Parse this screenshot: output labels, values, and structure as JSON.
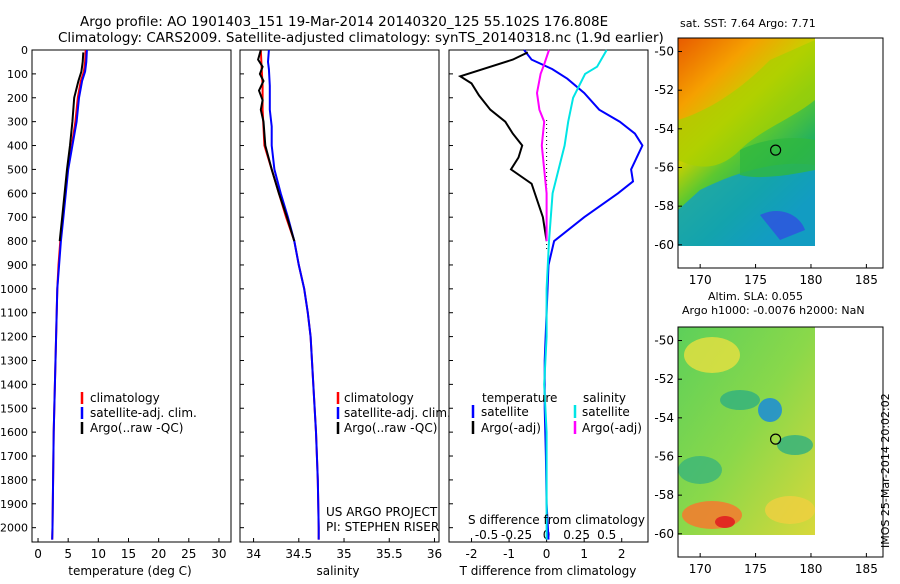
{
  "header": {
    "title_line1": "Argo profile: AO 1901403_151 19-Mar-2014 20140320_125 55.102S 176.808E",
    "title_line2": "Climatology: CARS2009. Satellite-adjusted climatology: synTS_20140318.nc (1.9d earlier)"
  },
  "side_stamp": "IMOS 25-Mar-2014 20:02:02",
  "colors": {
    "climatology": "#ff0000",
    "satellite": "#0000ff",
    "argo": "#000000",
    "salinity_sat": "#00e5e5",
    "salinity_argo": "#ff00ff"
  },
  "chart_data": [
    {
      "id": "temperature",
      "type": "line",
      "xlabel": "temperature (deg C)",
      "ylabel": "",
      "xlim": [
        -1,
        32
      ],
      "ylim": [
        2060,
        0
      ],
      "xticks": [
        0,
        5,
        10,
        15,
        20,
        25,
        30
      ],
      "yticks": [
        0,
        100,
        200,
        300,
        400,
        500,
        600,
        700,
        800,
        900,
        1000,
        1100,
        1200,
        1300,
        1400,
        1500,
        1600,
        1700,
        1800,
        1900,
        2000
      ],
      "legend": [
        "climatology",
        "satellite-adj. clim.",
        "Argo(..raw -QC)"
      ],
      "series": [
        {
          "name": "climatology",
          "color": "#ff0000",
          "points": [
            [
              7.9,
              0
            ],
            [
              7.8,
              50
            ],
            [
              7.6,
              90
            ],
            [
              7.1,
              130
            ],
            [
              6.6,
              200
            ],
            [
              6.2,
              300
            ],
            [
              5.6,
              400
            ],
            [
              4.9,
              500
            ],
            [
              4.5,
              600
            ],
            [
              4.1,
              700
            ],
            [
              3.7,
              800
            ],
            [
              3.4,
              900
            ],
            [
              3.2,
              1000
            ],
            [
              3.0,
              1200
            ],
            [
              2.8,
              1400
            ],
            [
              2.6,
              1600
            ],
            [
              2.5,
              1800
            ],
            [
              2.4,
              2000
            ],
            [
              2.35,
              2050
            ]
          ]
        },
        {
          "name": "satellite-adj. clim.",
          "color": "#0000ff",
          "points": [
            [
              8.1,
              0
            ],
            [
              8.0,
              50
            ],
            [
              7.8,
              90
            ],
            [
              7.3,
              130
            ],
            [
              6.8,
              200
            ],
            [
              6.4,
              300
            ],
            [
              5.7,
              400
            ],
            [
              5.0,
              500
            ],
            [
              4.6,
              600
            ],
            [
              4.2,
              700
            ],
            [
              3.8,
              800
            ],
            [
              3.5,
              900
            ],
            [
              3.2,
              1000
            ],
            [
              3.0,
              1200
            ],
            [
              2.8,
              1400
            ],
            [
              2.6,
              1600
            ],
            [
              2.5,
              1800
            ],
            [
              2.4,
              2000
            ],
            [
              2.35,
              2050
            ]
          ]
        },
        {
          "name": "Argo(..raw -QC)",
          "color": "#000000",
          "points": [
            [
              7.5,
              10
            ],
            [
              7.4,
              50
            ],
            [
              7.2,
              90
            ],
            [
              6.7,
              130
            ],
            [
              6.0,
              200
            ],
            [
              5.7,
              300
            ],
            [
              5.3,
              400
            ],
            [
              4.8,
              500
            ],
            [
              4.4,
              600
            ],
            [
              4.0,
              700
            ],
            [
              3.6,
              800
            ]
          ]
        }
      ]
    },
    {
      "id": "salinity",
      "type": "line",
      "xlabel": "salinity",
      "ylabel": "",
      "xlim": [
        33.85,
        36.05
      ],
      "ylim": [
        2060,
        0
      ],
      "xticks": [
        34,
        34.5,
        35,
        35.5,
        36
      ],
      "annotations": [
        "US ARGO PROJECT",
        "PI: STEPHEN RISER"
      ],
      "legend": [
        "climatology",
        "satellite-adj. clim.",
        "Argo(..raw -QC)"
      ],
      "series": [
        {
          "name": "climatology",
          "color": "#ff0000",
          "points": [
            [
              34.08,
              0
            ],
            [
              34.09,
              80
            ],
            [
              34.1,
              150
            ],
            [
              34.1,
              250
            ],
            [
              34.12,
              400
            ],
            [
              34.2,
              500
            ],
            [
              34.28,
              600
            ],
            [
              34.36,
              700
            ],
            [
              34.45,
              800
            ],
            [
              34.5,
              900
            ],
            [
              34.56,
              1000
            ],
            [
              34.6,
              1100
            ],
            [
              34.63,
              1200
            ],
            [
              34.66,
              1400
            ],
            [
              34.69,
              1600
            ],
            [
              34.71,
              1800
            ],
            [
              34.72,
              2000
            ],
            [
              34.72,
              2050
            ]
          ]
        },
        {
          "name": "satellite-adj. clim.",
          "color": "#0000ff",
          "points": [
            [
              34.17,
              0
            ],
            [
              34.16,
              50
            ],
            [
              34.17,
              80
            ],
            [
              34.18,
              150
            ],
            [
              34.18,
              250
            ],
            [
              34.2,
              320
            ],
            [
              34.2,
              400
            ],
            [
              34.23,
              500
            ],
            [
              34.3,
              600
            ],
            [
              34.38,
              700
            ],
            [
              34.45,
              800
            ],
            [
              34.5,
              900
            ],
            [
              34.56,
              1000
            ],
            [
              34.6,
              1100
            ],
            [
              34.63,
              1200
            ],
            [
              34.66,
              1400
            ],
            [
              34.69,
              1600
            ],
            [
              34.71,
              1800
            ],
            [
              34.72,
              2000
            ],
            [
              34.72,
              2050
            ]
          ]
        },
        {
          "name": "Argo(..raw -QC)",
          "color": "#000000",
          "points": [
            [
              34.08,
              0
            ],
            [
              34.05,
              40
            ],
            [
              34.1,
              70
            ],
            [
              34.07,
              100
            ],
            [
              34.11,
              130
            ],
            [
              34.06,
              170
            ],
            [
              34.1,
              210
            ],
            [
              34.08,
              250
            ],
            [
              34.11,
              300
            ],
            [
              34.13,
              400
            ],
            [
              34.2,
              500
            ],
            [
              34.28,
              600
            ],
            [
              34.37,
              700
            ],
            [
              34.45,
              800
            ]
          ]
        }
      ]
    },
    {
      "id": "difference",
      "type": "line",
      "xlabel": "T difference from climatology",
      "ylabel": "",
      "xlim": [
        -2.6,
        2.7
      ],
      "ylim": [
        2060,
        0
      ],
      "xticks": [
        -2,
        -1,
        0,
        1,
        2
      ],
      "xticklabels": [
        "-2",
        "-1",
        "0",
        "1",
        "2"
      ],
      "top_label": "S difference from climatology",
      "sal_ticks": [
        -0.5,
        -0.25,
        0,
        0.25,
        0.5
      ],
      "sal_ticklabels": [
        "-0.5",
        "-0.25",
        "0",
        "0.25",
        "0.5"
      ],
      "legend_temperature_title": "temperature",
      "legend_salinity_title": "salinity",
      "legend_temperature": [
        "satellite",
        "Argo(-adj)"
      ],
      "legend_salinity": [
        "satellite",
        "Argo(-adj)"
      ],
      "series": [
        {
          "name": "T satellite",
          "color": "#0000ff",
          "points": [
            [
              -0.6,
              0
            ],
            [
              -0.4,
              40
            ],
            [
              0.15,
              80
            ],
            [
              0.55,
              120
            ],
            [
              1.0,
              180
            ],
            [
              1.4,
              250
            ],
            [
              1.95,
              300
            ],
            [
              2.35,
              350
            ],
            [
              2.55,
              400
            ],
            [
              2.25,
              500
            ],
            [
              2.3,
              550
            ],
            [
              1.9,
              600
            ],
            [
              1.0,
              700
            ],
            [
              0.2,
              800
            ],
            [
              0.05,
              900
            ],
            [
              0.0,
              1100
            ],
            [
              -0.05,
              1300
            ],
            [
              -0.05,
              1500
            ],
            [
              -0.02,
              1700
            ],
            [
              0.0,
              1900
            ],
            [
              0.05,
              2050
            ]
          ]
        },
        {
          "name": "T Argo(-adj)",
          "color": "#000000",
          "points": [
            [
              -0.5,
              10
            ],
            [
              -0.9,
              40
            ],
            [
              -2.3,
              110
            ],
            [
              -2.0,
              140
            ],
            [
              -1.8,
              190
            ],
            [
              -1.5,
              250
            ],
            [
              -1.1,
              300
            ],
            [
              -0.9,
              350
            ],
            [
              -0.65,
              400
            ],
            [
              -0.75,
              450
            ],
            [
              -0.95,
              500
            ],
            [
              -0.4,
              560
            ],
            [
              -0.1,
              700
            ],
            [
              0.0,
              800
            ]
          ]
        },
        {
          "name": "S satellite",
          "color": "#00e5e5",
          "points": [
            [
              0.5,
              0
            ],
            [
              0.42,
              70
            ],
            [
              0.32,
              100
            ],
            [
              0.22,
              200
            ],
            [
              0.18,
              300
            ],
            [
              0.15,
              400
            ],
            [
              0.1,
              500
            ],
            [
              0.05,
              600
            ],
            [
              0.02,
              800
            ],
            [
              0.0,
              1000
            ],
            [
              0.0,
              1200
            ],
            [
              -0.02,
              1400
            ],
            [
              0.0,
              1600
            ],
            [
              0.0,
              1800
            ],
            [
              0.0,
              2050
            ]
          ]
        },
        {
          "name": "S Argo(-adj)",
          "color": "#ff00ff",
          "points": [
            [
              0.02,
              0
            ],
            [
              -0.02,
              60
            ],
            [
              -0.05,
              100
            ],
            [
              -0.08,
              180
            ],
            [
              -0.06,
              250
            ],
            [
              -0.02,
              300
            ],
            [
              -0.03,
              350
            ],
            [
              -0.04,
              400
            ],
            [
              -0.02,
              500
            ],
            [
              0.0,
              600
            ],
            [
              0.0,
              800
            ]
          ]
        }
      ]
    }
  ],
  "maps": [
    {
      "title": "sat. SST: 7.64 Argo: 7.71",
      "xticks": [
        170,
        175,
        180,
        185
      ],
      "yticks": [
        -50,
        -52,
        -54,
        -56,
        -58,
        -60
      ],
      "marker": [
        176.808,
        -55.102
      ]
    },
    {
      "title_line1": "Altim. SLA: 0.055",
      "title_line2": "Argo h1000: -0.0076 h2000: NaN",
      "xticks": [
        170,
        175,
        180,
        185
      ],
      "yticks": [
        -50,
        -52,
        -54,
        -56,
        -58,
        -60
      ],
      "marker": [
        176.808,
        -55.102
      ]
    }
  ]
}
